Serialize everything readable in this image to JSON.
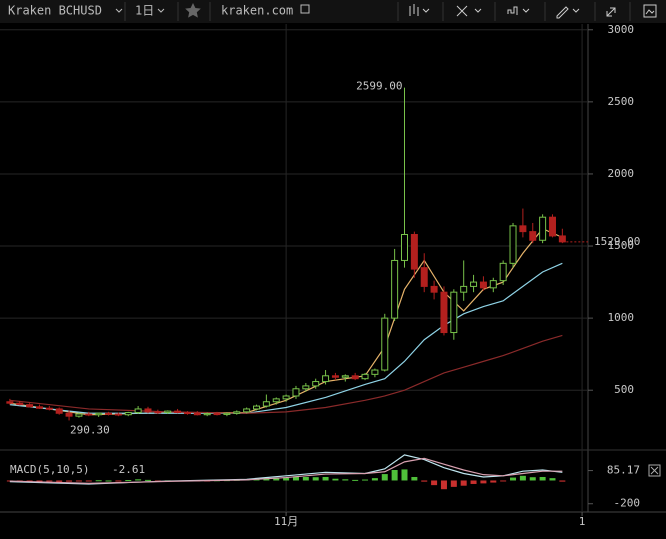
{
  "toolbar": {
    "symbol": "Kraken BCHUSD",
    "interval": "1日",
    "site": "kraken.com"
  },
  "chart_data": [
    {
      "type": "candlestick",
      "x": [
        0,
        1,
        2,
        3,
        4,
        5,
        6,
        7,
        8,
        9,
        10,
        11,
        12,
        13,
        14,
        15,
        16,
        17,
        18,
        19,
        20,
        21,
        22,
        23,
        24,
        25,
        26,
        27,
        28,
        29,
        30,
        31,
        32,
        33,
        34,
        35,
        36,
        37,
        38,
        39,
        40,
        41,
        42,
        43,
        44,
        45,
        46,
        47,
        48,
        49,
        50,
        51,
        52,
        53,
        54,
        55,
        56
      ],
      "open": [
        420,
        410,
        400,
        385,
        375,
        370,
        340,
        320,
        335,
        330,
        340,
        335,
        330,
        345,
        370,
        350,
        345,
        355,
        345,
        340,
        330,
        338,
        332,
        340,
        350,
        370,
        390,
        420,
        440,
        460,
        510,
        530,
        560,
        600,
        590,
        600,
        580,
        610,
        640,
        1000,
        1400,
        1580,
        1350,
        1220,
        1180,
        900,
        1180,
        1220,
        1250,
        1210,
        1260,
        1380,
        1640,
        1600,
        1540,
        1700,
        1570
      ],
      "high": [
        440,
        425,
        410,
        400,
        390,
        380,
        360,
        345,
        350,
        345,
        350,
        345,
        350,
        390,
        385,
        365,
        360,
        370,
        355,
        355,
        345,
        350,
        345,
        360,
        380,
        400,
        470,
        450,
        470,
        530,
        550,
        580,
        640,
        620,
        610,
        620,
        620,
        650,
        1030,
        1480,
        2599,
        1600,
        1450,
        1260,
        1220,
        1200,
        1400,
        1300,
        1290,
        1280,
        1400,
        1660,
        1760,
        1660,
        1720,
        1720,
        1620
      ],
      "low": [
        400,
        395,
        380,
        370,
        360,
        330,
        290.3,
        310,
        320,
        315,
        325,
        320,
        320,
        335,
        340,
        335,
        335,
        340,
        330,
        325,
        320,
        325,
        320,
        330,
        340,
        360,
        380,
        400,
        420,
        440,
        490,
        510,
        540,
        570,
        560,
        570,
        570,
        590,
        630,
        980,
        1350,
        1280,
        1180,
        1130,
        880,
        850,
        1120,
        1180,
        1190,
        1180,
        1230,
        1350,
        1560,
        1520,
        1520,
        1560,
        1520
      ],
      "close": [
        410,
        400,
        385,
        375,
        370,
        340,
        320,
        335,
        330,
        340,
        335,
        330,
        345,
        370,
        350,
        345,
        355,
        345,
        340,
        330,
        338,
        332,
        340,
        350,
        370,
        390,
        420,
        440,
        460,
        510,
        530,
        560,
        600,
        590,
        600,
        580,
        610,
        640,
        1000,
        1400,
        1580,
        1340,
        1220,
        1180,
        900,
        1180,
        1220,
        1250,
        1210,
        1260,
        1380,
        1640,
        1600,
        1540,
        1700,
        1570,
        1529
      ],
      "up_color": "#78c24a",
      "down_color": "#b3201e",
      "ma_lines": [
        {
          "color": "#e6b36a",
          "x": [
            0,
            8,
            16,
            24,
            28,
            32,
            36,
            38,
            40,
            42,
            44,
            46,
            48,
            50,
            52,
            54,
            56
          ],
          "values": [
            410,
            330,
            345,
            345,
            430,
            560,
            600,
            800,
            1200,
            1400,
            1180,
            1050,
            1200,
            1250,
            1450,
            1620,
            1560
          ]
        },
        {
          "color": "#8fd3e6",
          "x": [
            0,
            8,
            16,
            24,
            28,
            32,
            36,
            38,
            40,
            42,
            44,
            46,
            48,
            50,
            52,
            54,
            56
          ],
          "values": [
            400,
            340,
            340,
            340,
            380,
            450,
            540,
            580,
            700,
            850,
            950,
            1030,
            1080,
            1120,
            1220,
            1320,
            1380
          ]
        },
        {
          "color": "#8a2a2a",
          "x": [
            0,
            8,
            16,
            24,
            28,
            32,
            36,
            38,
            40,
            42,
            44,
            46,
            48,
            50,
            52,
            54,
            56
          ],
          "values": [
            430,
            370,
            350,
            340,
            350,
            380,
            430,
            460,
            500,
            560,
            620,
            660,
            700,
            740,
            790,
            840,
            880
          ]
        }
      ],
      "annotations": {
        "high_label": "2599.00",
        "low_label": "290.30",
        "last_label": "1529.00"
      },
      "xlim": [
        -1,
        58.6
      ],
      "xticks": [
        {
          "value": 28,
          "label": "11月"
        },
        {
          "value": 58,
          "label": "1"
        }
      ],
      "ylim": [
        120,
        3040
      ],
      "yticks": [
        500,
        1000,
        1500,
        2000,
        2500,
        3000
      ],
      "grid": true
    },
    {
      "type": "macd",
      "title": "MACD(5,10,5)",
      "current": "-2.61",
      "x": [
        0,
        1,
        2,
        3,
        4,
        5,
        6,
        7,
        8,
        9,
        10,
        11,
        12,
        13,
        14,
        15,
        16,
        17,
        18,
        19,
        20,
        21,
        22,
        23,
        24,
        25,
        26,
        27,
        28,
        29,
        30,
        31,
        32,
        33,
        34,
        35,
        36,
        37,
        38,
        39,
        40,
        41,
        42,
        43,
        44,
        45,
        46,
        47,
        48,
        49,
        50,
        51,
        52,
        53,
        54,
        55,
        56
      ],
      "histogram": [
        -5,
        -8,
        -10,
        -10,
        -8,
        -12,
        -10,
        -4,
        -2,
        2,
        0,
        -2,
        4,
        10,
        5,
        -2,
        1,
        -1,
        -3,
        -4,
        -2,
        2,
        3,
        6,
        12,
        15,
        25,
        20,
        22,
        35,
        30,
        28,
        30,
        15,
        10,
        5,
        8,
        20,
        55,
        90,
        95,
        30,
        -10,
        -40,
        -75,
        -55,
        -45,
        -30,
        -25,
        -18,
        -5,
        25,
        40,
        28,
        30,
        20,
        -10
      ],
      "pos_color": "#4fbf3a",
      "neg_color": "#c8302e",
      "lines": [
        {
          "color": "#bfe6f0",
          "x": [
            0,
            8,
            16,
            24,
            28,
            32,
            36,
            38,
            40,
            42,
            44,
            46,
            48,
            50,
            52,
            54,
            56
          ],
          "values": [
            -10,
            -30,
            -5,
            10,
            40,
            70,
            60,
            100,
            220,
            180,
            110,
            60,
            30,
            40,
            80,
            90,
            70
          ]
        },
        {
          "color": "#d8a0b0",
          "x": [
            0,
            8,
            16,
            24,
            28,
            32,
            36,
            38,
            40,
            42,
            44,
            46,
            48,
            50,
            52,
            54,
            56
          ],
          "values": [
            -5,
            -25,
            -8,
            5,
            25,
            55,
            60,
            75,
            160,
            190,
            140,
            90,
            50,
            40,
            60,
            80,
            80
          ]
        }
      ],
      "ylim": [
        -271,
        219
      ],
      "yticks": [
        -200,
        85.17
      ]
    }
  ]
}
